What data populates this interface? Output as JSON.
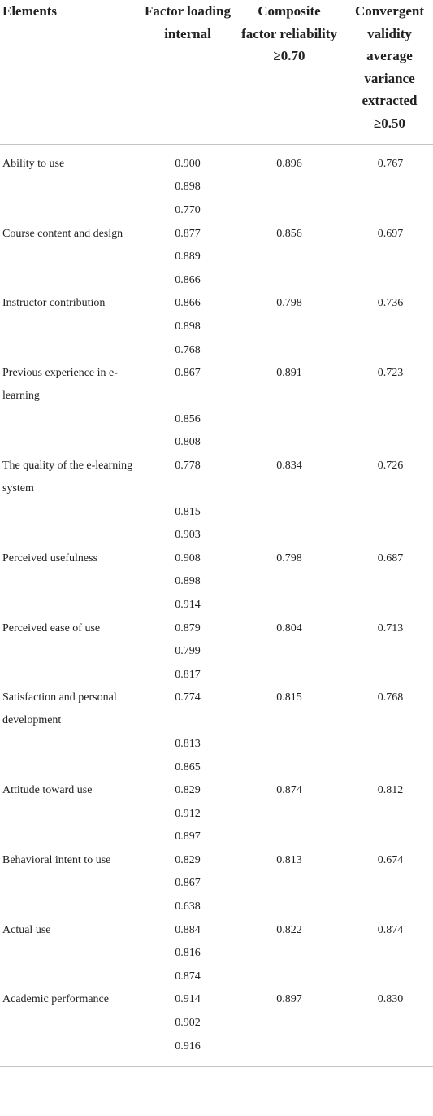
{
  "table": {
    "columns": [
      "Elements",
      "Factor loading internal",
      "Composite factor reliability ≥0.70",
      "Convergent validity average variance extracted ≥0.50"
    ],
    "rows": [
      {
        "element": "Ability to use",
        "loadings": [
          "0.900",
          "0.898",
          "0.770"
        ],
        "composite_reliability": "0.896",
        "ave": "0.767"
      },
      {
        "element": "Course content and design",
        "loadings": [
          "0.877",
          "0.889",
          "0.866"
        ],
        "composite_reliability": "0.856",
        "ave": "0.697"
      },
      {
        "element": "Instructor contribution",
        "loadings": [
          "0.866",
          "0.898",
          "0.768"
        ],
        "composite_reliability": "0.798",
        "ave": "0.736"
      },
      {
        "element": "Previous experience in e-learning",
        "loadings": [
          "0.867",
          "0.856",
          "0.808"
        ],
        "composite_reliability": "0.891",
        "ave": "0.723"
      },
      {
        "element": "The quality of the e-learning system",
        "loadings": [
          "0.778",
          "0.815",
          "0.903"
        ],
        "composite_reliability": "0.834",
        "ave": "0.726"
      },
      {
        "element": "Perceived usefulness",
        "loadings": [
          "0.908",
          "0.898",
          "0.914"
        ],
        "composite_reliability": "0.798",
        "ave": "0.687"
      },
      {
        "element": "Perceived ease of use",
        "loadings": [
          "0.879",
          "0.799",
          "0.817"
        ],
        "composite_reliability": "0.804",
        "ave": "0.713"
      },
      {
        "element": "Satisfaction and personal development",
        "loadings": [
          "0.774",
          "0.813",
          "0.865"
        ],
        "composite_reliability": "0.815",
        "ave": "0.768"
      },
      {
        "element": "Attitude toward use",
        "loadings": [
          "0.829",
          "0.912",
          "0.897"
        ],
        "composite_reliability": "0.874",
        "ave": "0.812"
      },
      {
        "element": "Behavioral intent to use",
        "loadings": [
          "0.829",
          "0.867",
          "0.638"
        ],
        "composite_reliability": "0.813",
        "ave": "0.674"
      },
      {
        "element": "Actual use",
        "loadings": [
          "0.884",
          "0.816",
          "0.874"
        ],
        "composite_reliability": "0.822",
        "ave": "0.874"
      },
      {
        "element": "Academic performance",
        "loadings": [
          "0.914",
          "0.902",
          "0.916"
        ],
        "composite_reliability": "0.897",
        "ave": "0.830"
      }
    ]
  }
}
